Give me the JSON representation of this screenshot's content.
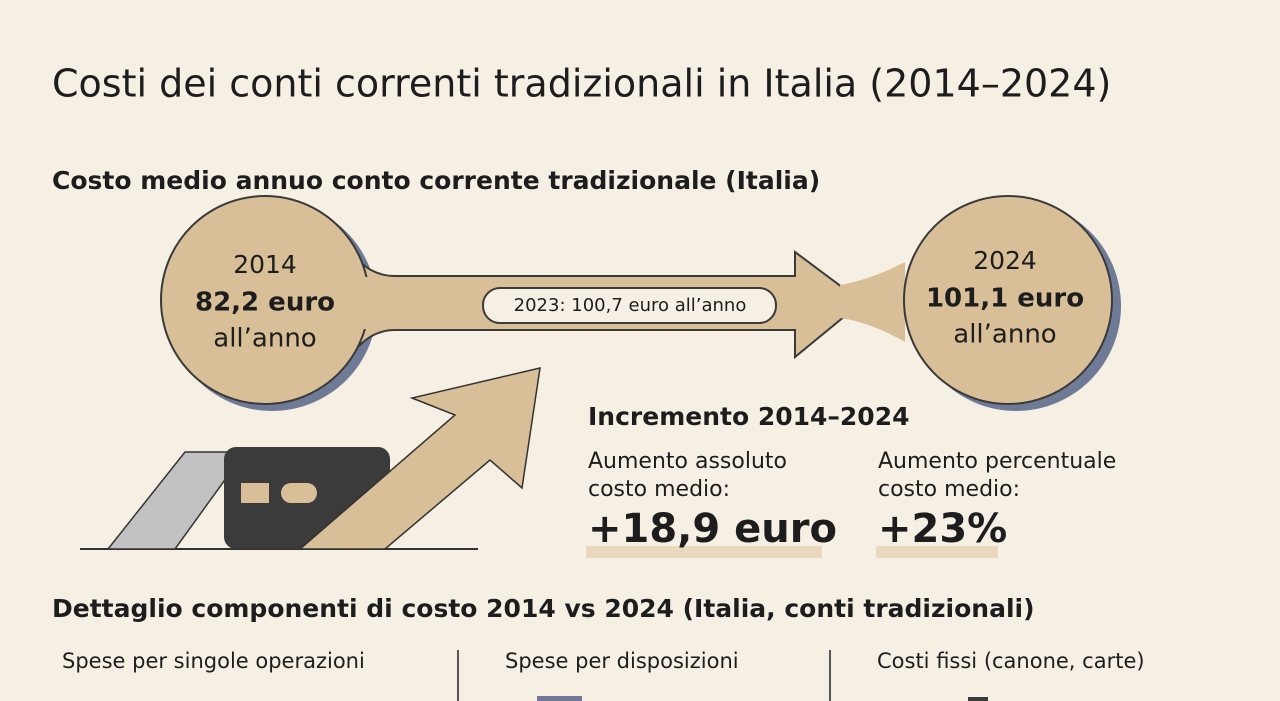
{
  "title": "Costi dei conti correnti tradizionali in Italia (2014–2024)",
  "summary": {
    "title": "Costo medio annuo conto corrente tradizionale (Italia)",
    "start": {
      "year": "2014",
      "value": "82,2 euro",
      "unit": "all’anno"
    },
    "end": {
      "year": "2024",
      "value": "101,1 euro",
      "unit": "all’anno"
    },
    "midpoint": "2023: 100,7 euro all’anno"
  },
  "increase": {
    "title": "Incremento 2014–2024",
    "absolute": {
      "label_lines": [
        "Aumento assoluto",
        "costo medio:"
      ],
      "value": "+18,9 euro"
    },
    "percent": {
      "label_lines": [
        "Aumento percentuale",
        "costo medio:"
      ],
      "value": "+23%"
    }
  },
  "detail": {
    "title": "Dettaglio componenti di costo 2014 vs 2024 (Italia, conti tradizionali)",
    "columns": [
      "Spese per singole operazioni",
      "Spese per disposizioni",
      "Costi fissi (canone, carte)"
    ]
  }
}
